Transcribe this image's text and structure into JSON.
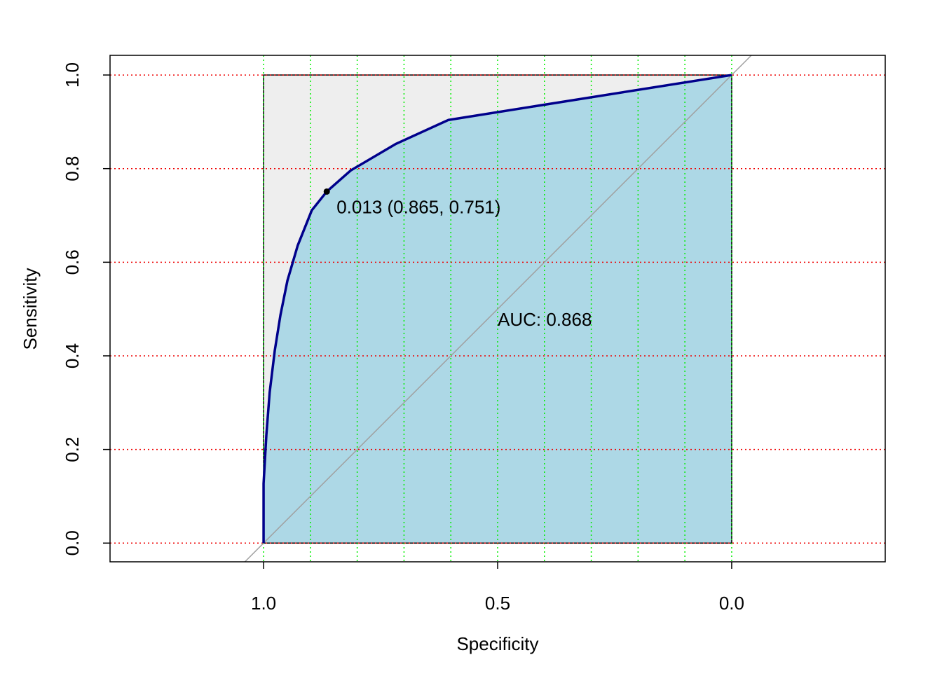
{
  "chart_data": {
    "type": "roc",
    "x_label": "Specificity",
    "y_label": "Sensitivity",
    "annotation": "AUC: 0.868",
    "annotation_color": "#00008b",
    "color": "#00008b",
    "x": [
      1,
      1,
      0.994,
      0.987,
      0.976,
      0.964,
      0.949,
      0.927,
      0.897,
      0.865,
      0.814,
      0.717,
      0.605,
      0
    ],
    "values": [
      0,
      0.127,
      0.232,
      0.322,
      0.412,
      0.487,
      0.561,
      0.636,
      0.711,
      0.751,
      0.796,
      0.853,
      0.904,
      1
    ],
    "best_point": {
      "x": 0.865,
      "y": 0.751,
      "label": "0.013 (0.865, 0.751)"
    },
    "auc_fill": "#add8e6",
    "background_fill": "#eeeeee",
    "reference_line_color": "#a0a0a0",
    "xlim": [
      1.328,
      -0.328
    ],
    "ylim": [
      -0.04,
      1.042
    ],
    "xticks": [
      {
        "value": 1,
        "label": "1.0"
      },
      {
        "value": 0.5,
        "label": "0.5"
      },
      {
        "value": 0,
        "label": "0.0"
      }
    ],
    "yticks": [
      {
        "value": 0,
        "label": "0.0"
      },
      {
        "value": 0.2,
        "label": "0.2"
      },
      {
        "value": 0.4,
        "label": "0.4"
      },
      {
        "value": 0.6,
        "label": "0.6"
      },
      {
        "value": 0.8,
        "label": "0.8"
      },
      {
        "value": 1,
        "label": "1.0"
      }
    ],
    "grid_x": [
      1,
      0.9,
      0.8,
      0.7,
      0.6,
      0.5,
      0.4,
      0.3,
      0.2,
      0.1,
      0
    ],
    "grid_x_color": "#00ee00",
    "grid_y": [
      0,
      0.2,
      0.4,
      0.6,
      0.8,
      1
    ],
    "grid_y_color": "#ee0000"
  }
}
